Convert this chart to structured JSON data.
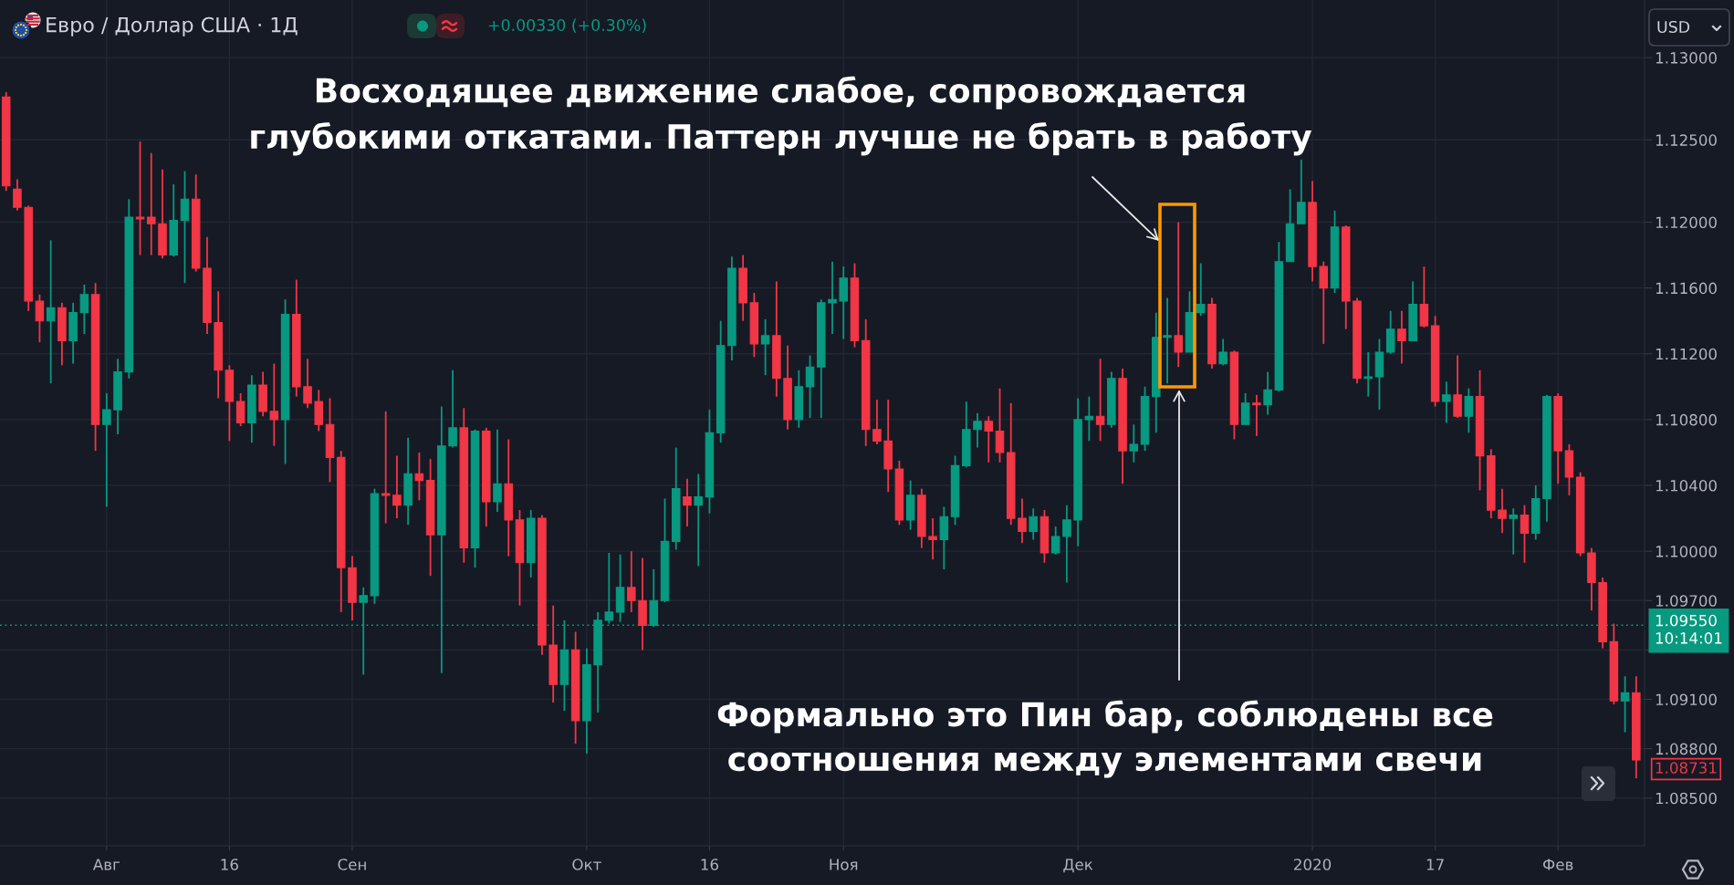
{
  "chart_data": {
    "type": "candlestick",
    "title": "Евро / Доллар США · 1Д",
    "subtitle": "+0.00330 (+0.30%)",
    "categories": [
      null,
      null,
      null,
      null,
      null,
      null,
      null,
      null,
      null,
      "Авг",
      null,
      null,
      null,
      null,
      null,
      null,
      null,
      null,
      null,
      null,
      "16",
      null,
      null,
      null,
      null,
      null,
      null,
      null,
      null,
      null,
      null,
      "Сен",
      null,
      null,
      null,
      null,
      null,
      null,
      null,
      null,
      null,
      null,
      null,
      null,
      null,
      null,
      null,
      null,
      null,
      null,
      null,
      null,
      "Окт",
      null,
      null,
      null,
      null,
      null,
      null,
      null,
      null,
      null,
      null,
      "16",
      null,
      null,
      null,
      null,
      null,
      null,
      null,
      null,
      null,
      null,
      null,
      "Ноя",
      null,
      null,
      null,
      null,
      null,
      null,
      null,
      null,
      null,
      null,
      null,
      null,
      null,
      null,
      null,
      null,
      null,
      null,
      null,
      null,
      "Дек",
      null,
      null,
      null,
      null,
      null,
      null,
      null,
      null,
      null,
      null,
      null,
      null,
      null,
      null,
      null,
      null,
      null,
      null,
      null,
      null,
      "2020",
      null,
      null,
      null,
      null,
      null,
      null,
      null,
      null,
      null,
      null,
      "17",
      null,
      null,
      null,
      null,
      null,
      null,
      null,
      null,
      null,
      null,
      "Фев",
      null,
      null,
      null,
      null,
      null,
      null,
      null
    ],
    "ohlc": [
      [
        1.1276,
        1.1279,
        1.1219,
        1.1222
      ],
      [
        1.122,
        1.1226,
        1.1207,
        1.1209
      ],
      [
        1.1209,
        1.121,
        1.1146,
        1.1152
      ],
      [
        1.1152,
        1.1156,
        1.1127,
        1.114
      ],
      [
        1.114,
        1.1189,
        1.1102,
        1.1148
      ],
      [
        1.1148,
        1.1151,
        1.1113,
        1.1128
      ],
      [
        1.1128,
        1.1151,
        1.1114,
        1.1145
      ],
      [
        1.1145,
        1.1162,
        1.1132,
        1.1156
      ],
      [
        1.1156,
        1.1163,
        1.1061,
        1.1077
      ],
      [
        1.1077,
        1.1096,
        1.1027,
        1.1086
      ],
      [
        1.1086,
        1.1117,
        1.1071,
        1.1109
      ],
      [
        1.1109,
        1.1214,
        1.1105,
        1.1203
      ],
      [
        1.1203,
        1.1249,
        1.118,
        1.1202
      ],
      [
        1.1203,
        1.1242,
        1.118,
        1.1199
      ],
      [
        1.1199,
        1.1232,
        1.1178,
        1.118
      ],
      [
        1.118,
        1.1223,
        1.1179,
        1.1201
      ],
      [
        1.1201,
        1.1231,
        1.1163,
        1.1214
      ],
      [
        1.1214,
        1.1229,
        1.117,
        1.1172
      ],
      [
        1.1172,
        1.1191,
        1.1132,
        1.1139
      ],
      [
        1.1139,
        1.1158,
        1.1093,
        1.111
      ],
      [
        1.111,
        1.1113,
        1.1067,
        1.1091
      ],
      [
        1.1091,
        1.1096,
        1.1076,
        1.1078
      ],
      [
        1.1078,
        1.1107,
        1.1066,
        1.1101
      ],
      [
        1.1101,
        1.1109,
        1.1082,
        1.1085
      ],
      [
        1.1085,
        1.1114,
        1.1064,
        1.108
      ],
      [
        1.108,
        1.1153,
        1.1053,
        1.1144
      ],
      [
        1.1144,
        1.1165,
        1.1094,
        1.11
      ],
      [
        1.11,
        1.1117,
        1.1087,
        1.109
      ],
      [
        1.1091,
        1.1098,
        1.1073,
        1.1077
      ],
      [
        1.1077,
        1.1093,
        1.1042,
        1.1057
      ],
      [
        1.1057,
        1.1061,
        1.0963,
        1.099
      ],
      [
        1.099,
        1.0997,
        1.0958,
        1.0969
      ],
      [
        1.0969,
        1.0978,
        1.0925,
        1.0973
      ],
      [
        1.0973,
        1.1038,
        1.0968,
        1.1035
      ],
      [
        1.1035,
        1.1085,
        1.1017,
        1.1034
      ],
      [
        1.1034,
        1.1058,
        1.102,
        1.1028
      ],
      [
        1.1028,
        1.1069,
        1.1016,
        1.1047
      ],
      [
        1.1047,
        1.106,
        1.1031,
        1.1043
      ],
      [
        1.1043,
        1.1056,
        1.0985,
        1.101
      ],
      [
        1.101,
        1.1088,
        1.0926,
        1.1064
      ],
      [
        1.1064,
        1.111,
        1.1063,
        1.1075
      ],
      [
        1.1075,
        1.1087,
        1.0993,
        1.1002
      ],
      [
        1.1002,
        1.1074,
        1.099,
        1.1073
      ],
      [
        1.1073,
        1.1075,
        1.1015,
        1.103
      ],
      [
        1.103,
        1.1074,
        1.1024,
        1.1041
      ],
      [
        1.1041,
        1.1068,
        1.0997,
        1.1019
      ],
      [
        1.1019,
        1.1025,
        1.0967,
        1.0993
      ],
      [
        1.0993,
        1.1025,
        1.0984,
        1.102
      ],
      [
        1.102,
        1.1022,
        1.0937,
        1.0943
      ],
      [
        1.0943,
        1.0967,
        1.0908,
        1.0919
      ],
      [
        1.0919,
        1.0958,
        1.0903,
        1.094
      ],
      [
        1.094,
        1.0951,
        1.0883,
        1.0897
      ],
      [
        1.0897,
        1.0941,
        1.0877,
        1.0931
      ],
      [
        1.0931,
        1.0963,
        1.0902,
        1.0958
      ],
      [
        1.0958,
        1.0999,
        1.0956,
        1.0963
      ],
      [
        1.0963,
        1.0998,
        1.0957,
        1.0978
      ],
      [
        1.0978,
        1.1,
        1.0963,
        1.097
      ],
      [
        1.097,
        1.0996,
        1.094,
        1.0955
      ],
      [
        1.0955,
        1.0989,
        1.0954,
        1.097
      ],
      [
        1.097,
        1.1032,
        1.0969,
        1.1006
      ],
      [
        1.1006,
        1.1063,
        1.1001,
        1.1038
      ],
      [
        1.1033,
        1.1044,
        1.1015,
        1.1028
      ],
      [
        1.1028,
        1.1047,
        1.0991,
        1.1033
      ],
      [
        1.1033,
        1.1086,
        1.1023,
        1.1072
      ],
      [
        1.1072,
        1.114,
        1.1066,
        1.1125
      ],
      [
        1.1125,
        1.1179,
        1.1116,
        1.1172
      ],
      [
        1.1172,
        1.118,
        1.114,
        1.1151
      ],
      [
        1.1151,
        1.1157,
        1.1118,
        1.1126
      ],
      [
        1.1126,
        1.1141,
        1.1107,
        1.1131
      ],
      [
        1.1131,
        1.1164,
        1.1094,
        1.1105
      ],
      [
        1.1105,
        1.1125,
        1.1074,
        1.108
      ],
      [
        1.108,
        1.111,
        1.1075,
        1.11
      ],
      [
        1.11,
        1.1119,
        1.1081,
        1.1112
      ],
      [
        1.1112,
        1.1153,
        1.1081,
        1.1151
      ],
      [
        1.1151,
        1.1176,
        1.1132,
        1.1153
      ],
      [
        1.1152,
        1.1173,
        1.1129,
        1.1166
      ],
      [
        1.1166,
        1.1175,
        1.1124,
        1.1128
      ],
      [
        1.1128,
        1.1141,
        1.1064,
        1.1074
      ],
      [
        1.1074,
        1.1092,
        1.1065,
        1.1067
      ],
      [
        1.1067,
        1.1092,
        1.1036,
        1.105
      ],
      [
        1.105,
        1.1055,
        1.1016,
        1.1019
      ],
      [
        1.1019,
        1.1043,
        1.1013,
        1.1034
      ],
      [
        1.1034,
        1.1038,
        1.1002,
        1.1009
      ],
      [
        1.1009,
        1.102,
        1.0995,
        1.1007
      ],
      [
        1.1007,
        1.1027,
        1.0989,
        1.1021
      ],
      [
        1.1021,
        1.1058,
        1.1016,
        1.1052
      ],
      [
        1.1052,
        1.1091,
        1.1051,
        1.1074
      ],
      [
        1.1074,
        1.1084,
        1.1063,
        1.1079
      ],
      [
        1.1079,
        1.1082,
        1.1054,
        1.1073
      ],
      [
        1.1073,
        1.1099,
        1.1054,
        1.106
      ],
      [
        1.106,
        1.109,
        1.1016,
        1.102
      ],
      [
        1.102,
        1.1032,
        1.1005,
        1.1012
      ],
      [
        1.1012,
        1.1026,
        1.1007,
        1.1021
      ],
      [
        1.1021,
        1.1025,
        1.0993,
        1.0999
      ],
      [
        1.0999,
        1.1015,
        1.0998,
        1.1009
      ],
      [
        1.1009,
        1.1028,
        1.0981,
        1.1019
      ],
      [
        1.1019,
        1.1093,
        1.1003,
        1.108
      ],
      [
        1.108,
        1.1094,
        1.1067,
        1.1082
      ],
      [
        1.1082,
        1.1117,
        1.1067,
        1.1077
      ],
      [
        1.1077,
        1.1109,
        1.1075,
        1.1105
      ],
      [
        1.1105,
        1.1111,
        1.1041,
        1.1061
      ],
      [
        1.1061,
        1.1077,
        1.1054,
        1.1065
      ],
      [
        1.1065,
        1.11,
        1.1061,
        1.1094
      ],
      [
        1.1094,
        1.1145,
        1.1072,
        1.113
      ],
      [
        1.113,
        1.1154,
        1.1102,
        1.1131
      ],
      [
        1.1131,
        1.12,
        1.1112,
        1.1121
      ],
      [
        1.1121,
        1.1158,
        1.1121,
        1.1145
      ],
      [
        1.1145,
        1.1175,
        1.1143,
        1.115
      ],
      [
        1.115,
        1.1154,
        1.1111,
        1.1114
      ],
      [
        1.1114,
        1.1129,
        1.1113,
        1.1121
      ],
      [
        1.1121,
        1.1122,
        1.1068,
        1.1077
      ],
      [
        1.1077,
        1.1096,
        1.1077,
        1.109
      ],
      [
        1.109,
        1.1095,
        1.107,
        1.1089
      ],
      [
        1.1089,
        1.1109,
        1.1083,
        1.1098
      ],
      [
        1.1098,
        1.1188,
        1.1097,
        1.1176
      ],
      [
        1.1176,
        1.122,
        1.1176,
        1.1199
      ],
      [
        1.1199,
        1.1238,
        1.1199,
        1.1212
      ],
      [
        1.1212,
        1.1225,
        1.1164,
        1.1173
      ],
      [
        1.1173,
        1.1176,
        1.1126,
        1.116
      ],
      [
        1.116,
        1.1207,
        1.1157,
        1.1197
      ],
      [
        1.1197,
        1.1198,
        1.1135,
        1.1152
      ],
      [
        1.1152,
        1.1154,
        1.1102,
        1.1105
      ],
      [
        1.1105,
        1.1121,
        1.1094,
        1.1106
      ],
      [
        1.1106,
        1.1129,
        1.1086,
        1.1121
      ],
      [
        1.1121,
        1.1146,
        1.112,
        1.1135
      ],
      [
        1.1135,
        1.1146,
        1.1114,
        1.1128
      ],
      [
        1.1128,
        1.1164,
        1.1128,
        1.115
      ],
      [
        1.115,
        1.1173,
        1.1136,
        1.1137
      ],
      [
        1.1137,
        1.1143,
        1.1088,
        1.1091
      ],
      [
        1.1091,
        1.1103,
        1.1078,
        1.1095
      ],
      [
        1.1095,
        1.1119,
        1.1081,
        1.1082
      ],
      [
        1.1082,
        1.1099,
        1.1072,
        1.1094
      ],
      [
        1.1094,
        1.111,
        1.1037,
        1.1058
      ],
      [
        1.1058,
        1.1062,
        1.102,
        1.1025
      ],
      [
        1.1025,
        1.1038,
        1.1011,
        1.102
      ],
      [
        1.102,
        1.1026,
        1.0998,
        1.1022
      ],
      [
        1.1022,
        1.1028,
        1.0993,
        1.1011
      ],
      [
        1.1011,
        1.104,
        1.1007,
        1.1032
      ],
      [
        1.1032,
        1.1095,
        1.1018,
        1.1094
      ],
      [
        1.1094,
        1.1096,
        1.1041,
        1.1061
      ],
      [
        1.1061,
        1.1065,
        1.1034,
        1.1045
      ],
      [
        1.1045,
        1.1048,
        1.0997,
        1.0999
      ],
      [
        1.0999,
        1.1002,
        1.0964,
        1.0981
      ],
      [
        1.0981,
        1.0984,
        1.0941,
        1.0945
      ],
      [
        1.0945,
        1.0956,
        1.0907,
        1.0909
      ],
      [
        1.0909,
        1.0924,
        1.089,
        1.0914
      ],
      [
        1.0914,
        1.0924,
        1.0862,
        1.08731
      ]
    ],
    "colors": [
      "#f23645",
      "#f23645",
      "#f23645",
      "#f23645",
      "#089981",
      "#f23645",
      "#089981",
      "#089981",
      "#f23645",
      "#089981",
      "#089981",
      "#089981",
      "#f23645",
      "#f23645",
      "#f23645",
      "#089981",
      "#089981",
      "#f23645",
      "#f23645",
      "#f23645",
      "#f23645",
      "#f23645",
      "#089981",
      "#f23645",
      "#f23645",
      "#089981",
      "#f23645",
      "#f23645",
      "#f23645",
      "#f23645",
      "#f23645",
      "#f23645",
      "#089981",
      "#089981",
      "#f23645",
      "#f23645",
      "#089981",
      "#f23645",
      "#f23645",
      "#089981",
      "#089981",
      "#f23645",
      "#089981",
      "#f23645",
      "#089981",
      "#f23645",
      "#f23645",
      "#089981",
      "#f23645",
      "#f23645",
      "#089981",
      "#f23645",
      "#089981",
      "#089981",
      "#089981",
      "#089981",
      "#f23645",
      "#f23645",
      "#089981",
      "#089981",
      "#089981",
      "#f23645",
      "#089981",
      "#089981",
      "#089981",
      "#089981",
      "#f23645",
      "#f23645",
      "#089981",
      "#f23645",
      "#f23645",
      "#089981",
      "#089981",
      "#089981",
      "#089981",
      "#089981",
      "#f23645",
      "#f23645",
      "#f23645",
      "#f23645",
      "#f23645",
      "#089981",
      "#f23645",
      "#f23645",
      "#089981",
      "#089981",
      "#089981",
      "#089981",
      "#f23645",
      "#f23645",
      "#f23645",
      "#f23645",
      "#089981",
      "#f23645",
      "#089981",
      "#089981",
      "#089981",
      "#089981",
      "#f23645",
      "#089981",
      "#f23645",
      "#089981",
      "#089981",
      "#089981",
      "#089981",
      "#f23645",
      "#089981",
      "#089981",
      "#f23645",
      "#089981",
      "#f23645",
      "#089981",
      "#f23645",
      "#089981",
      "#089981",
      "#089981",
      "#089981",
      "#f23645",
      "#f23645",
      "#089981",
      "#f23645",
      "#f23645",
      "#089981",
      "#089981",
      "#089981",
      "#f23645",
      "#089981",
      "#f23645",
      "#f23645",
      "#089981",
      "#f23645",
      "#089981",
      "#f23645",
      "#f23645",
      "#f23645",
      "#089981",
      "#f23645",
      "#089981",
      "#089981",
      "#f23645",
      "#f23645",
      "#f23645",
      "#f23645",
      "#f23645",
      "#f23645",
      "#089981",
      "#f23645"
    ],
    "ylim": [
      1.0821,
      1.1335
    ],
    "yticks": [
      {
        "value": 1.085,
        "label": "1.08500"
      },
      {
        "value": 1.088,
        "label": "1.08800"
      },
      {
        "value": 1.091,
        "label": "1.09100"
      },
      {
        "value": 1.094,
        "label": null
      },
      {
        "value": 1.097,
        "label": "1.09700"
      },
      {
        "value": 1.1,
        "label": "1.10000"
      },
      {
        "value": 1.104,
        "label": "1.10400"
      },
      {
        "value": 1.108,
        "label": "1.10800"
      },
      {
        "value": 1.112,
        "label": "1.11200"
      },
      {
        "value": 1.116,
        "label": "1.11600"
      },
      {
        "value": 1.12,
        "label": "1.12000"
      },
      {
        "value": 1.125,
        "label": "1.12500"
      },
      {
        "value": 1.13,
        "label": "1.13000"
      }
    ],
    "grid": true,
    "ref_lines": [
      {
        "axis": "y",
        "value": 1.0955,
        "label": "1.09550\n10:14:01",
        "color": "#089981",
        "line_style": "dotted"
      }
    ],
    "annotations": [
      "Восходящее движение слабое, сопровождается\nглубокими откатами. Паттерн лучше не брать в работу",
      "Формально это Пин бар, соблюдены все\nсоотношения между элементами свечи",
      "1.08731",
      "USD"
    ]
  }
}
